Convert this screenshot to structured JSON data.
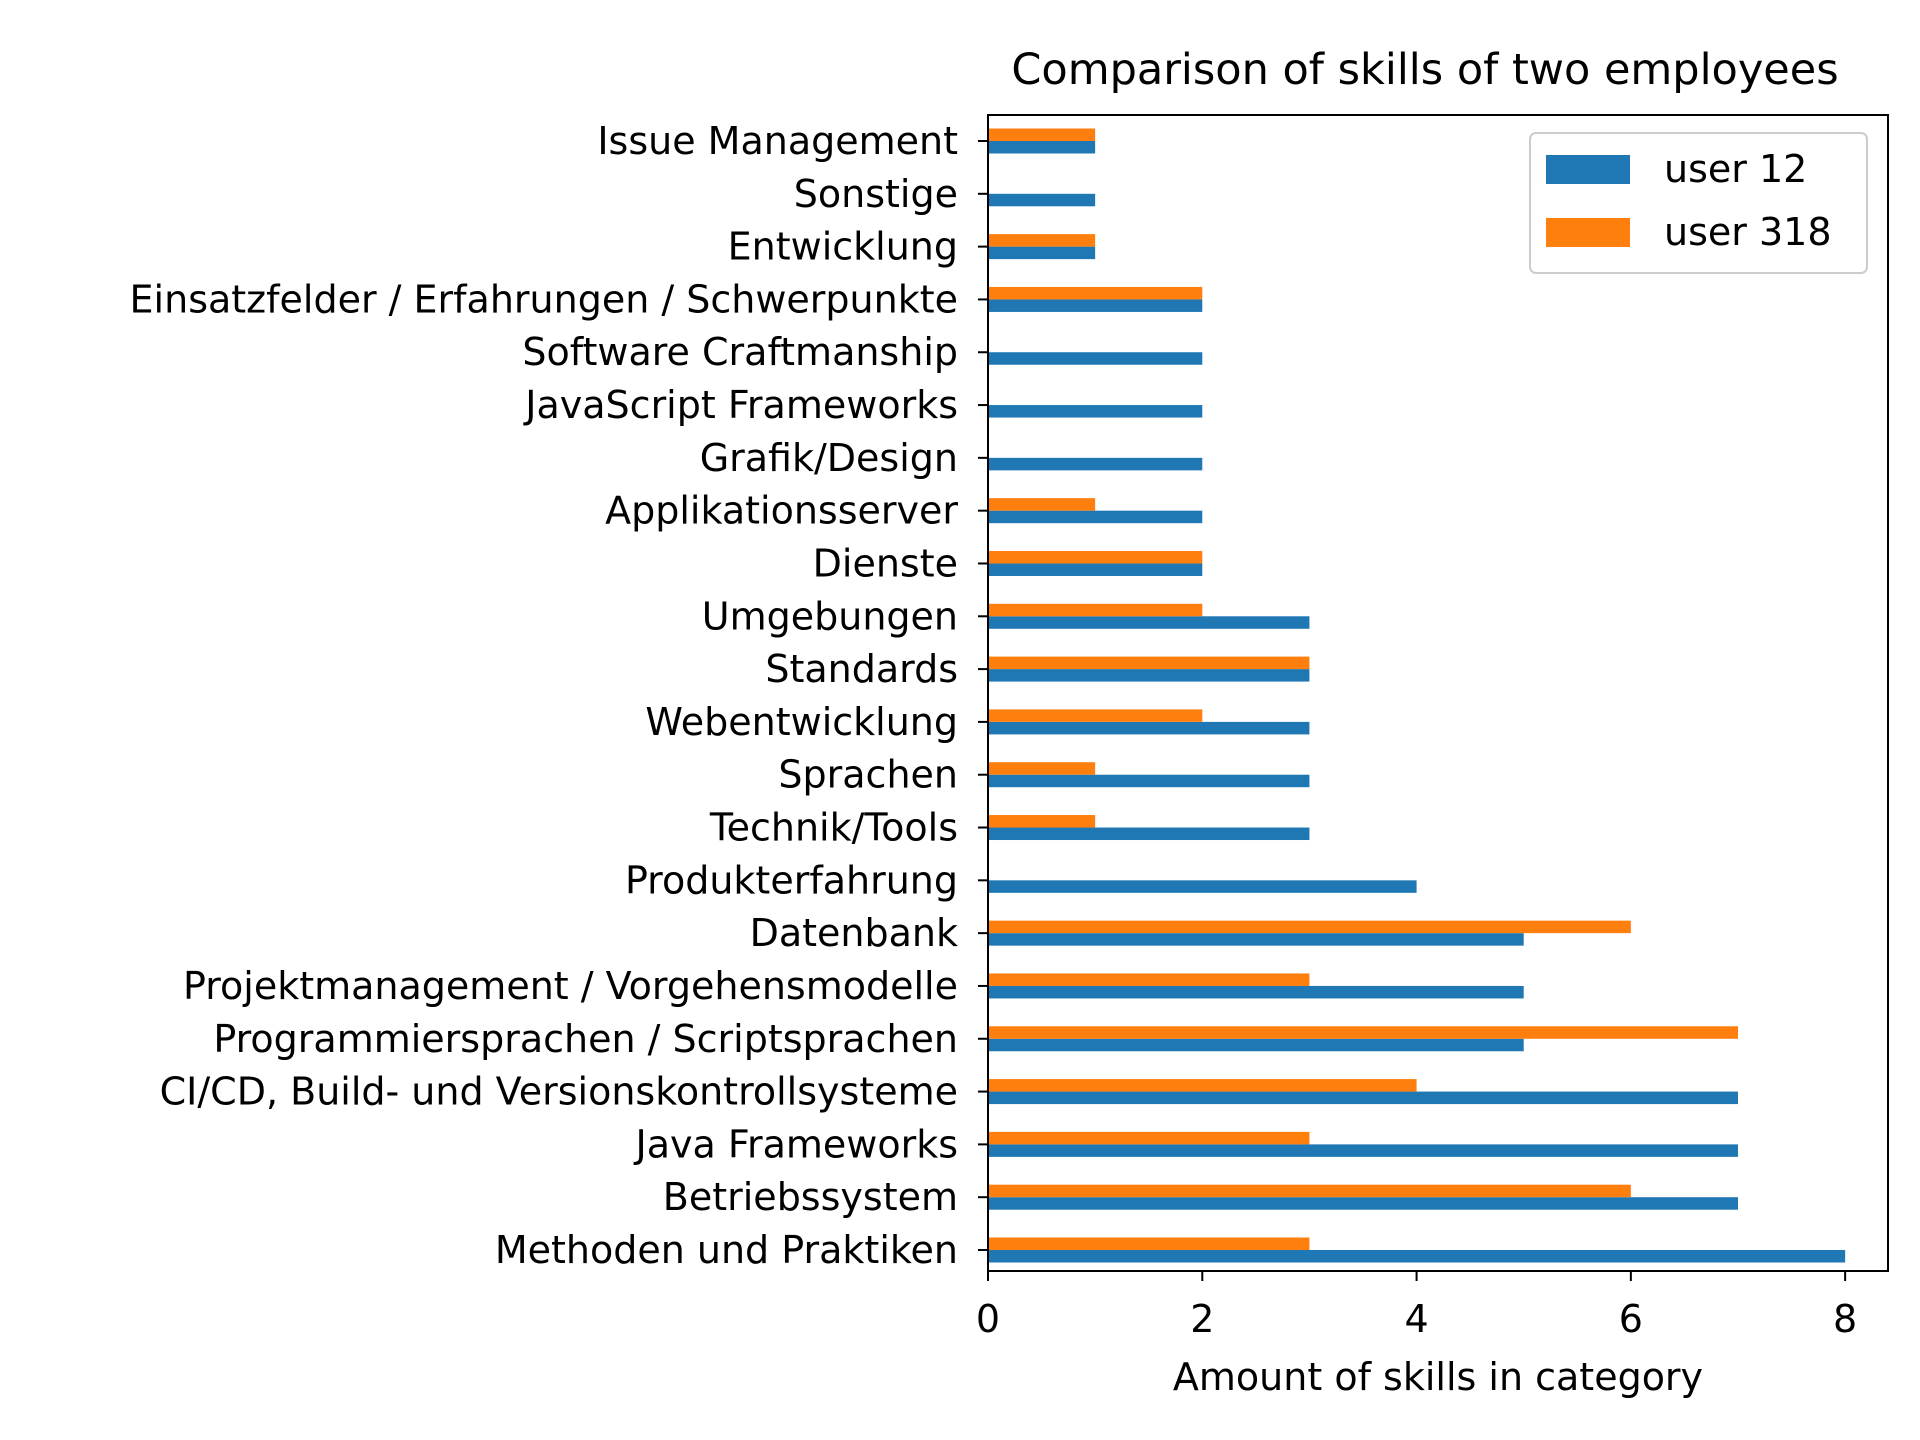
{
  "chart_data": {
    "type": "bar",
    "orientation": "horizontal",
    "title": "Comparison of skills of two employees",
    "xlabel": "Amount of skills in category",
    "ylabel": "",
    "xlim": [
      0,
      8.4
    ],
    "xticks": [
      "0",
      "2",
      "4",
      "6",
      "8"
    ],
    "grid": false,
    "legend_position": "top-right",
    "categories": [
      "Methoden und Praktiken",
      "Betriebssystem",
      "Java Frameworks",
      "CI/CD, Build- und Versionskontrollsysteme",
      "Programmiersprachen / Scriptsprachen",
      "Projektmanagement / Vorgehensmodelle",
      "Datenbank",
      "Produkterfahrung",
      "Technik/Tools",
      "Sprachen",
      "Webentwicklung",
      "Standards",
      "Umgebungen",
      "Dienste",
      "Applikationsserver",
      "Grafik/Design",
      "JavaScript Frameworks",
      "Software Craftmanship",
      "Einsatzfelder / Erfahrungen / Schwerpunkte",
      "Entwicklung",
      "Sonstige",
      "Issue Management"
    ],
    "series": [
      {
        "name": "user 12",
        "color": "#1f77b4",
        "values": [
          8,
          7,
          7,
          7,
          5,
          5,
          5,
          4,
          3,
          3,
          3,
          3,
          3,
          2,
          2,
          2,
          2,
          2,
          2,
          1,
          1,
          1
        ]
      },
      {
        "name": "user 318",
        "color": "#ff7f0e",
        "values": [
          3,
          6,
          3,
          4,
          7,
          3,
          6,
          0,
          1,
          1,
          2,
          3,
          2,
          2,
          1,
          0,
          0,
          0,
          2,
          1,
          0,
          1
        ]
      }
    ]
  }
}
